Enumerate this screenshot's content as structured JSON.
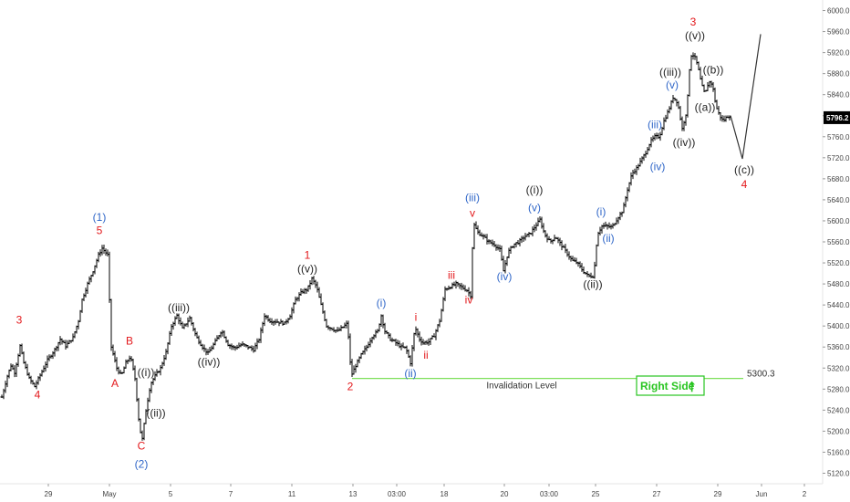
{
  "chart_data": {
    "type": "ohlc",
    "y_axis": {
      "min": 5100,
      "max": 6020,
      "ticks": [
        "6000.0",
        "5960.0",
        "5920.0",
        "5880.0",
        "5840.0",
        "5800.0",
        "5760.0",
        "5720.0",
        "5680.0",
        "5640.0",
        "5600.0",
        "5560.0",
        "5520.0",
        "5480.0",
        "5440.0",
        "5400.0",
        "5360.0",
        "5320.0",
        "5280.0",
        "5240.0",
        "5200.0",
        "5160.0",
        "5120.0"
      ]
    },
    "x_axis": {
      "bar_range": [
        0,
        900
      ],
      "ticks": [
        {
          "label": "29",
          "bar": 53
        },
        {
          "label": "May",
          "bar": 120
        },
        {
          "label": "5",
          "bar": 187
        },
        {
          "label": "7",
          "bar": 253
        },
        {
          "label": "11",
          "bar": 320
        },
        {
          "label": "13",
          "bar": 387
        },
        {
          "label": "03:00",
          "bar": 435
        },
        {
          "label": "18",
          "bar": 487
        },
        {
          "label": "20",
          "bar": 553
        },
        {
          "label": "03:00",
          "bar": 602
        },
        {
          "label": "25",
          "bar": 653
        },
        {
          "label": "27",
          "bar": 720
        },
        {
          "label": "29",
          "bar": 787
        },
        {
          "label": "Jun",
          "bar": 835
        },
        {
          "label": "2",
          "bar": 882
        }
      ]
    },
    "last_price": {
      "label": "5796.2",
      "value": 5796.2
    },
    "price_path": [
      [
        2,
        5265
      ],
      [
        8,
        5305
      ],
      [
        12,
        5325
      ],
      [
        16,
        5312
      ],
      [
        22,
        5362
      ],
      [
        26,
        5330
      ],
      [
        32,
        5300
      ],
      [
        38,
        5285
      ],
      [
        45,
        5310
      ],
      [
        52,
        5335
      ],
      [
        60,
        5355
      ],
      [
        66,
        5375
      ],
      [
        72,
        5362
      ],
      [
        80,
        5378
      ],
      [
        86,
        5410
      ],
      [
        90,
        5450
      ],
      [
        96,
        5480
      ],
      [
        102,
        5505
      ],
      [
        108,
        5535
      ],
      [
        112,
        5548
      ],
      [
        118,
        5535
      ],
      [
        122,
        5360
      ],
      [
        128,
        5320
      ],
      [
        133,
        5305
      ],
      [
        138,
        5330
      ],
      [
        143,
        5342
      ],
      [
        148,
        5300
      ],
      [
        153,
        5205
      ],
      [
        156,
        5185
      ],
      [
        160,
        5240
      ],
      [
        165,
        5290
      ],
      [
        170,
        5305
      ],
      [
        176,
        5320
      ],
      [
        182,
        5350
      ],
      [
        188,
        5400
      ],
      [
        194,
        5420
      ],
      [
        200,
        5395
      ],
      [
        208,
        5415
      ],
      [
        215,
        5380
      ],
      [
        222,
        5360
      ],
      [
        228,
        5348
      ],
      [
        236,
        5370
      ],
      [
        243,
        5392
      ],
      [
        250,
        5365
      ],
      [
        257,
        5358
      ],
      [
        265,
        5365
      ],
      [
        272,
        5360
      ],
      [
        278,
        5355
      ],
      [
        284,
        5375
      ],
      [
        290,
        5420
      ],
      [
        296,
        5410
      ],
      [
        304,
        5408
      ],
      [
        312,
        5405
      ],
      [
        318,
        5420
      ],
      [
        324,
        5450
      ],
      [
        331,
        5465
      ],
      [
        337,
        5470
      ],
      [
        342,
        5490
      ],
      [
        347,
        5475
      ],
      [
        352,
        5440
      ],
      [
        358,
        5400
      ],
      [
        364,
        5395
      ],
      [
        370,
        5390
      ],
      [
        376,
        5398
      ],
      [
        381,
        5405
      ],
      [
        385,
        5305
      ],
      [
        390,
        5325
      ],
      [
        396,
        5345
      ],
      [
        402,
        5360
      ],
      [
        408,
        5380
      ],
      [
        414,
        5390
      ],
      [
        418,
        5420
      ],
      [
        422,
        5390
      ],
      [
        428,
        5375
      ],
      [
        434,
        5368
      ],
      [
        440,
        5360
      ],
      [
        445,
        5358
      ],
      [
        450,
        5330
      ],
      [
        455,
        5398
      ],
      [
        460,
        5375
      ],
      [
        464,
        5368
      ],
      [
        470,
        5370
      ],
      [
        476,
        5382
      ],
      [
        482,
        5410
      ],
      [
        488,
        5470
      ],
      [
        494,
        5475
      ],
      [
        500,
        5480
      ],
      [
        506,
        5474
      ],
      [
        512,
        5468
      ],
      [
        516,
        5458
      ],
      [
        519,
        5595
      ],
      [
        524,
        5578
      ],
      [
        530,
        5570
      ],
      [
        536,
        5560
      ],
      [
        542,
        5555
      ],
      [
        548,
        5545
      ],
      [
        552,
        5505
      ],
      [
        557,
        5540
      ],
      [
        563,
        5555
      ],
      [
        569,
        5560
      ],
      [
        575,
        5570
      ],
      [
        581,
        5575
      ],
      [
        587,
        5590
      ],
      [
        592,
        5602
      ],
      [
        597,
        5575
      ],
      [
        603,
        5560
      ],
      [
        609,
        5570
      ],
      [
        615,
        5555
      ],
      [
        621,
        5540
      ],
      [
        627,
        5525
      ],
      [
        633,
        5520
      ],
      [
        639,
        5505
      ],
      [
        645,
        5495
      ],
      [
        651,
        5495
      ],
      [
        655,
        5575
      ],
      [
        660,
        5590
      ],
      [
        665,
        5590
      ],
      [
        671,
        5588
      ],
      [
        677,
        5605
      ],
      [
        683,
        5620
      ],
      [
        688,
        5660
      ],
      [
        693,
        5690
      ],
      [
        698,
        5700
      ],
      [
        703,
        5715
      ],
      [
        708,
        5730
      ],
      [
        713,
        5750
      ],
      [
        718,
        5760
      ],
      [
        723,
        5760
      ],
      [
        728,
        5790
      ],
      [
        733,
        5810
      ],
      [
        738,
        5835
      ],
      [
        743,
        5825
      ],
      [
        748,
        5775
      ],
      [
        753,
        5810
      ],
      [
        757,
        5915
      ],
      [
        761,
        5915
      ],
      [
        765,
        5895
      ],
      [
        769,
        5860
      ],
      [
        773,
        5840
      ],
      [
        777,
        5865
      ],
      [
        781,
        5860
      ],
      [
        785,
        5818
      ],
      [
        789,
        5800
      ],
      [
        793,
        5790
      ],
      [
        797,
        5798
      ],
      [
        801,
        5800
      ],
      [
        805,
        5790
      ],
      [
        814,
        5718
      ],
      [
        834,
        5955
      ]
    ],
    "projection": [
      [
        801,
        5800
      ],
      [
        814,
        5718
      ],
      [
        834,
        5955
      ]
    ],
    "invalidation": {
      "value": 5300.3,
      "label": "5300.3",
      "text": "Invalidation Level",
      "start_bar": 386
    },
    "labels": [
      {
        "text": "3",
        "bar": 21,
        "price": 5405,
        "color": "red"
      },
      {
        "text": "4",
        "bar": 41,
        "price": 5262,
        "color": "red"
      },
      {
        "text": "(1)",
        "bar": 109,
        "price": 5600,
        "color": "blue"
      },
      {
        "text": "5",
        "bar": 109,
        "price": 5575,
        "color": "red"
      },
      {
        "text": "B",
        "bar": 142,
        "price": 5365,
        "color": "red"
      },
      {
        "text": "A",
        "bar": 126,
        "price": 5284,
        "color": "red"
      },
      {
        "text": "((i))",
        "bar": 160,
        "price": 5305,
        "color": "dark"
      },
      {
        "text": "((ii))",
        "bar": 171,
        "price": 5228,
        "color": "dark"
      },
      {
        "text": "C",
        "bar": 155,
        "price": 5165,
        "color": "red"
      },
      {
        "text": "(2)",
        "bar": 155,
        "price": 5130,
        "color": "blue"
      },
      {
        "text": "((iii))",
        "bar": 196,
        "price": 5428,
        "color": "dark"
      },
      {
        "text": "((iv))",
        "bar": 229,
        "price": 5325,
        "color": "dark"
      },
      {
        "text": "1",
        "bar": 337,
        "price": 5528,
        "color": "red"
      },
      {
        "text": "((v))",
        "bar": 337,
        "price": 5502,
        "color": "dark"
      },
      {
        "text": "2",
        "bar": 384,
        "price": 5278,
        "color": "red"
      },
      {
        "text": "(i)",
        "bar": 418,
        "price": 5437,
        "color": "blue"
      },
      {
        "text": "(ii)",
        "bar": 450,
        "price": 5303,
        "color": "blue"
      },
      {
        "text": "i",
        "bar": 456,
        "price": 5410,
        "color": "red"
      },
      {
        "text": "ii",
        "bar": 467,
        "price": 5338,
        "color": "red"
      },
      {
        "text": "iii",
        "bar": 495,
        "price": 5490,
        "color": "red"
      },
      {
        "text": "iv",
        "bar": 514,
        "price": 5443,
        "color": "red"
      },
      {
        "text": "(iii)",
        "bar": 518,
        "price": 5637,
        "color": "blue"
      },
      {
        "text": "v",
        "bar": 518,
        "price": 5608,
        "color": "red"
      },
      {
        "text": "(iv)",
        "bar": 553,
        "price": 5487,
        "color": "blue"
      },
      {
        "text": "((i))",
        "bar": 586,
        "price": 5652,
        "color": "dark"
      },
      {
        "text": "(v)",
        "bar": 586,
        "price": 5618,
        "color": "blue"
      },
      {
        "text": "((ii))",
        "bar": 650,
        "price": 5472,
        "color": "dark"
      },
      {
        "text": "(i)",
        "bar": 659,
        "price": 5610,
        "color": "blue"
      },
      {
        "text": "(ii)",
        "bar": 667,
        "price": 5560,
        "color": "blue"
      },
      {
        "text": "(iii)",
        "bar": 718,
        "price": 5776,
        "color": "blue"
      },
      {
        "text": "(iv)",
        "bar": 721,
        "price": 5696,
        "color": "blue"
      },
      {
        "text": "((iv))",
        "bar": 750,
        "price": 5742,
        "color": "dark"
      },
      {
        "text": "(v)",
        "bar": 737,
        "price": 5852,
        "color": "blue"
      },
      {
        "text": "((iii))",
        "bar": 735,
        "price": 5876,
        "color": "dark"
      },
      {
        "text": "((v))",
        "bar": 762,
        "price": 5945,
        "color": "dark"
      },
      {
        "text": "3",
        "bar": 760,
        "price": 5971,
        "color": "red"
      },
      {
        "text": "((b))",
        "bar": 782,
        "price": 5880,
        "color": "dark"
      },
      {
        "text": "((a))",
        "bar": 773,
        "price": 5809,
        "color": "dark"
      },
      {
        "text": "((c))",
        "bar": 816,
        "price": 5690,
        "color": "dark"
      },
      {
        "text": "4",
        "bar": 816,
        "price": 5662,
        "color": "red"
      }
    ],
    "badge": {
      "text": "Right Side",
      "arrow": "⭡"
    }
  },
  "colors": {
    "red": "#e3191c",
    "blue": "#2f66c8",
    "dark": "#1f1f1f",
    "bars": "#000000",
    "invalidation": "#7ddf5a",
    "badge_green": "#29c521",
    "price_tag_bg": "#000000",
    "projection": "#333333",
    "axis_text": "#444444"
  }
}
